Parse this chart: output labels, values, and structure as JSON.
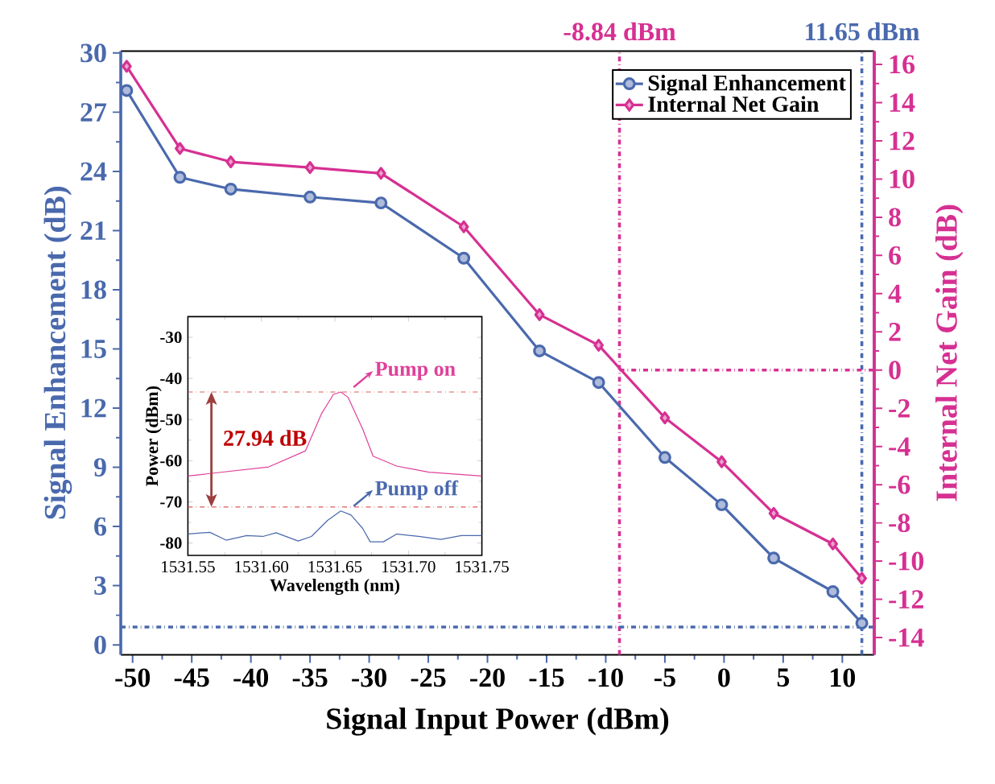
{
  "chart_data": [
    {
      "type": "line",
      "xlabel": "Signal Input Power (dBm)",
      "ylabel": "Signal Enhancement (dB)",
      "y2label": "Internal Net Gain (dB)",
      "x": [
        -50.5,
        -46,
        -41.7,
        -35,
        -29,
        -22,
        -15.6,
        -10.6,
        -5,
        -0.2,
        4.2,
        9.2,
        11.65
      ],
      "series": [
        {
          "name": "Signal Enhancement",
          "color": "#4a69ad",
          "marker": "circle",
          "values": [
            28.1,
            23.7,
            23.1,
            22.7,
            22.4,
            19.6,
            14.9,
            13.3,
            9.5,
            7.1,
            4.4,
            2.7,
            1.1
          ]
        },
        {
          "name": "Internal Net Gain",
          "color": "#d63092",
          "marker": "diamond",
          "axis": "y2",
          "values": [
            15.9,
            11.6,
            10.9,
            10.6,
            10.3,
            7.5,
            2.9,
            1.3,
            -2.5,
            -4.8,
            -7.5,
            -9.1,
            -10.9
          ]
        }
      ],
      "xlim": [
        -51,
        12.7
      ],
      "ylim": [
        -0.5,
        30.1
      ],
      "y2lim": [
        -14.9,
        16.7
      ],
      "xticks": [
        -50,
        -45,
        -40,
        -35,
        -30,
        -25,
        -20,
        -15,
        -10,
        -5,
        0,
        5,
        10
      ],
      "yticks": [
        0,
        3,
        6,
        9,
        12,
        15,
        18,
        21,
        24,
        27,
        30
      ],
      "y2ticks": [
        -14,
        -12,
        -10,
        -8,
        -6,
        -4,
        -2,
        0,
        2,
        4,
        6,
        8,
        10,
        12,
        14,
        16
      ],
      "ref_lines": [
        {
          "axis": "x",
          "value": -8.84,
          "label": "-8.84 dBm",
          "color": "#d63092",
          "line_style": "dashdot"
        },
        {
          "axis": "x",
          "value": 11.65,
          "label": "11.65 dBm",
          "color": "#4a69ad",
          "line_style": "dashdot"
        },
        {
          "axis": "y2",
          "value": 0,
          "color": "#d63092",
          "line_style": "dashdot"
        },
        {
          "axis": "y",
          "value": 0.9,
          "color": "#4a69ad",
          "line_style": "dashdot"
        }
      ],
      "legend": "top right",
      "grid": false
    },
    {
      "type": "line",
      "xlabel": "Wavelength (nm)",
      "ylabel": "Power (dBm)",
      "annotations": [
        "27.94 dB"
      ],
      "series": [
        {
          "name": "Pump on",
          "color": "#e0409a",
          "x": [
            1531.55,
            1531.605,
            1531.63,
            1531.641,
            1531.649,
            1531.654,
            1531.659,
            1531.669,
            1531.676,
            1531.692,
            1531.714,
            1531.75
          ],
          "values": [
            -63.7,
            -61.5,
            -57.6,
            -48.5,
            -43.9,
            -43.3,
            -44.6,
            -52.4,
            -58.9,
            -61.3,
            -62.8,
            -63.7
          ]
        },
        {
          "name": "Pump off",
          "color": "#4a69ad",
          "x": [
            1531.55,
            1531.565,
            1531.576,
            1531.59,
            1531.601,
            1531.61,
            1531.625,
            1531.634,
            1531.645,
            1531.654,
            1531.661,
            1531.669,
            1531.674,
            1531.683,
            1531.692,
            1531.707,
            1531.722,
            1531.736,
            1531.75
          ],
          "values": [
            -77.8,
            -77.4,
            -79.3,
            -78.2,
            -78.4,
            -77.5,
            -79.5,
            -78.4,
            -74.5,
            -72.2,
            -73.2,
            -76.5,
            -79.7,
            -79.7,
            -77.8,
            -78.4,
            -79.1,
            -78.2,
            -78.2
          ]
        }
      ],
      "xlim": [
        1531.55,
        1531.75
      ],
      "ylim": [
        -83,
        -25
      ],
      "xticks": [
        {
          "value": 1531.55,
          "label": "1531.55"
        },
        {
          "value": 1531.6,
          "label": "1531.60"
        },
        {
          "value": 1531.65,
          "label": "1531.65"
        },
        {
          "value": 1531.7,
          "label": "1531.70"
        },
        {
          "value": 1531.75,
          "label": "1531.75"
        }
      ],
      "yticks": [
        -80,
        -70,
        -60,
        -50,
        -40,
        -30
      ],
      "ref_lines": [
        {
          "axis": "y",
          "value": -43.3,
          "color": "#e05a5a",
          "line_style": "dashdot"
        },
        {
          "axis": "y",
          "value": -71.24,
          "color": "#e05a5a",
          "line_style": "dashdot"
        }
      ],
      "legend": "right",
      "grid": false
    }
  ]
}
